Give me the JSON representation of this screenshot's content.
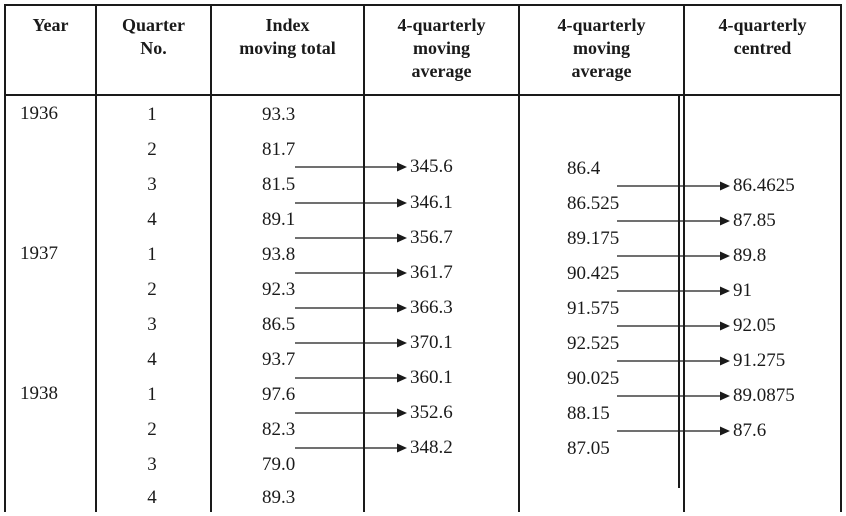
{
  "headers": {
    "year": [
      "Year"
    ],
    "quarter": [
      "Quarter",
      "No."
    ],
    "index": [
      "Index",
      "moving total"
    ],
    "moving_total": [
      "4-quarterly",
      "moving",
      "average"
    ],
    "moving_average": [
      "4-quarterly",
      "moving",
      "average"
    ],
    "centred": [
      "4-quarterly",
      "centred"
    ]
  },
  "years": [
    "1936",
    "1937",
    "1938"
  ],
  "quarters": [
    "1",
    "2",
    "3",
    "4",
    "1",
    "2",
    "3",
    "4",
    "1",
    "2",
    "3",
    "4"
  ],
  "index_values": [
    "93.3",
    "81.7",
    "81.5",
    "89.1",
    "93.8",
    "92.3",
    "86.5",
    "93.7",
    "97.6",
    "82.3",
    "79.0",
    "89.3"
  ],
  "moving_totals": [
    "345.6",
    "346.1",
    "356.7",
    "361.7",
    "366.3",
    "370.1",
    "360.1",
    "352.6",
    "348.2"
  ],
  "moving_averages": [
    "86.4",
    "86.525",
    "89.175",
    "90.425",
    "91.575",
    "92.525",
    "90.025",
    "88.15",
    "87.05"
  ],
  "centred_values": [
    "86.4625",
    "87.85",
    "89.8",
    "91",
    "92.05",
    "91.275",
    "89.0875",
    "87.6"
  ]
}
